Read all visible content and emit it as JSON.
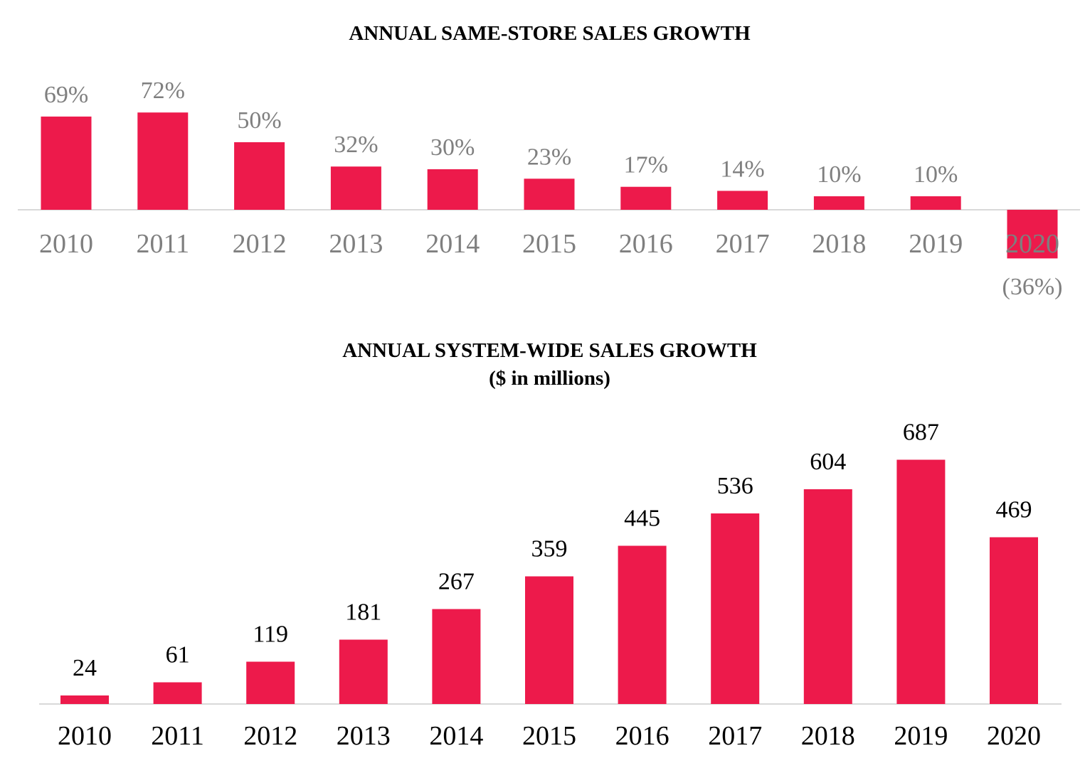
{
  "colors": {
    "bar": "#ED1A4B",
    "baseline": "#D9D9D9",
    "label_chart1": "#7F7F7F",
    "label_chart2": "#000000"
  },
  "chart_data": [
    {
      "type": "bar",
      "title": "ANNUAL SAME-STORE SALES GROWTH",
      "xlabel": "",
      "ylabel": "",
      "categories": [
        "2010",
        "2011",
        "2012",
        "2013",
        "2014",
        "2015",
        "2016",
        "2017",
        "2018",
        "2019",
        "2020"
      ],
      "values": [
        69,
        72,
        50,
        32,
        30,
        23,
        17,
        14,
        10,
        10,
        -36
      ],
      "value_labels": [
        "69%",
        "72%",
        "50%",
        "32%",
        "30%",
        "23%",
        "17%",
        "14%",
        "10%",
        "10%",
        "(36%)"
      ],
      "ylim": [
        -36,
        72
      ],
      "grid": false,
      "legend": "none"
    },
    {
      "type": "bar",
      "title": "ANNUAL SYSTEM-WIDE SALES GROWTH",
      "subtitle": "($ in millions)",
      "xlabel": "",
      "ylabel": "",
      "categories": [
        "2010",
        "2011",
        "2012",
        "2013",
        "2014",
        "2015",
        "2016",
        "2017",
        "2018",
        "2019",
        "2020"
      ],
      "values": [
        24,
        61,
        119,
        181,
        267,
        359,
        445,
        536,
        604,
        687,
        469
      ],
      "value_labels": [
        "24",
        "61",
        "119",
        "181",
        "267",
        "359",
        "445",
        "536",
        "604",
        "687",
        "469"
      ],
      "ylim": [
        0,
        687
      ],
      "grid": false,
      "legend": "none"
    }
  ]
}
